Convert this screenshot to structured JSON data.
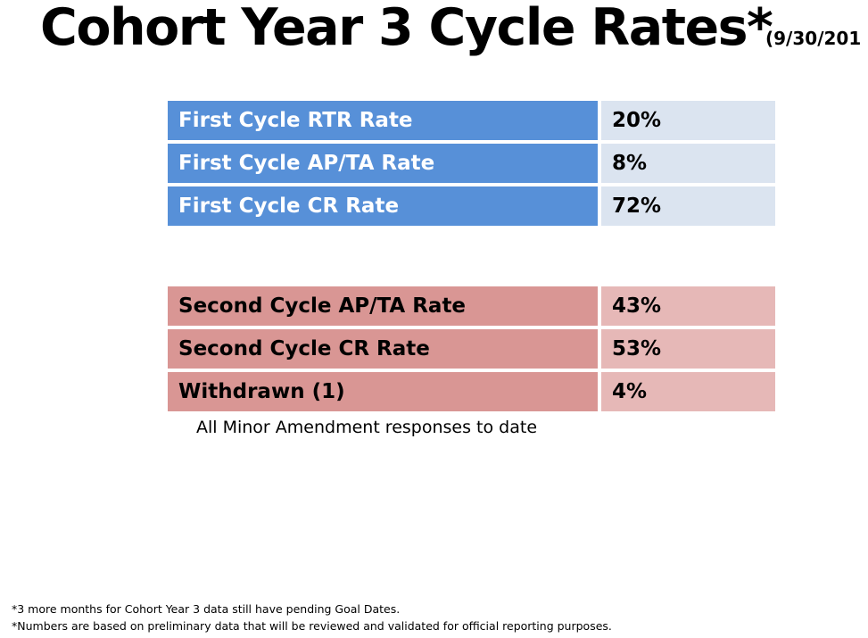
{
  "title": {
    "main": "Cohort Year 3 Cycle Rates*",
    "date": "(9/30/201"
  },
  "first_cycle": {
    "rows": [
      {
        "label": "First Cycle RTR Rate",
        "value": "20%"
      },
      {
        "label": "First Cycle AP/TA Rate",
        "value": "8%"
      },
      {
        "label": "First Cycle CR Rate",
        "value": "72%"
      }
    ]
  },
  "second_cycle": {
    "rows": [
      {
        "label": "Second Cycle AP/TA Rate",
        "value": "43%"
      },
      {
        "label": "Second Cycle CR Rate",
        "value": "53%"
      },
      {
        "label": "Withdrawn (1)",
        "value": "4%"
      }
    ]
  },
  "caption": "All Minor Amendment responses to date",
  "footnotes": [
    "*3 more months for Cohort Year 3 data still have pending Goal Dates.",
    "*Numbers are based on preliminary data that will be reviewed and validated for official reporting purposes."
  ],
  "colors": {
    "first_label_bg": "#5790d8",
    "first_value_bg": "#dbe4f0",
    "second_label_bg": "#d99694",
    "second_value_bg": "#e6b8b7"
  }
}
